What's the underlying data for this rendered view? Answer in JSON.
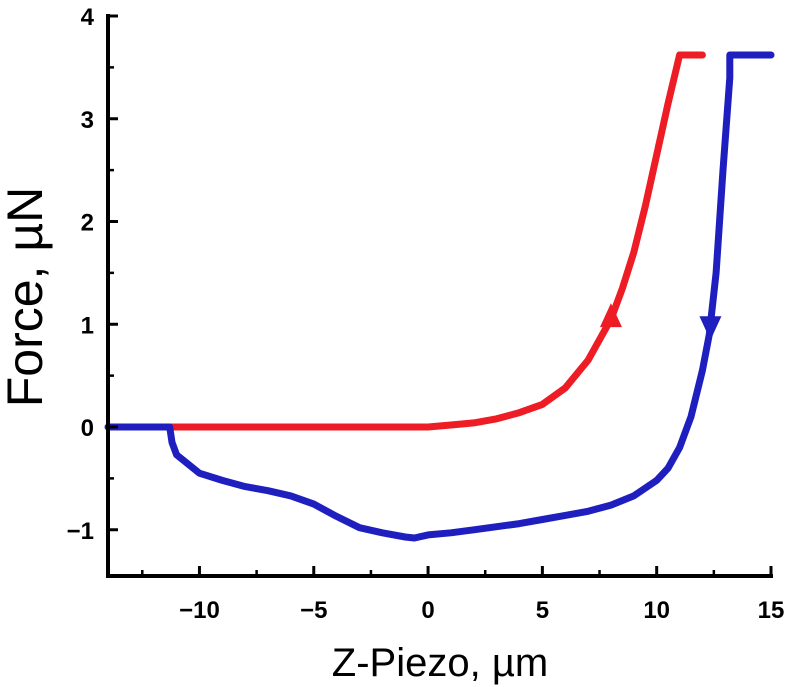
{
  "chart_data": {
    "type": "line",
    "title": "",
    "xlabel": "Z-Piezo, µm",
    "ylabel": "Force, µN",
    "xlim": [
      -14,
      15
    ],
    "ylim": [
      -1.45,
      4
    ],
    "x_ticks": [
      -10,
      -5,
      0,
      5,
      10,
      15
    ],
    "x_tick_labels": [
      "−10",
      "−5",
      "0",
      "5",
      "10",
      "15"
    ],
    "y_ticks": [
      -1,
      0,
      1,
      2,
      3,
      4
    ],
    "y_tick_labels": [
      "−1",
      "0",
      "1",
      "2",
      "3",
      "4"
    ],
    "grid": false,
    "series": [
      {
        "color": "#ee1c24",
        "direction": "up",
        "arrow_at_x": 8.0,
        "x": [
          -11.3,
          -6,
          -2,
          0,
          1,
          2,
          3,
          4,
          5,
          6,
          7,
          8,
          8.5,
          9,
          9.5,
          10,
          10.5,
          11.0,
          11.5,
          12.0
        ],
        "y": [
          0.0,
          0.0,
          0.0,
          0.0,
          0.02,
          0.04,
          0.08,
          0.14,
          0.22,
          0.38,
          0.65,
          1.05,
          1.35,
          1.7,
          2.15,
          2.65,
          3.15,
          3.62,
          3.62,
          3.62
        ]
      },
      {
        "color": "#1f1fbf",
        "direction": "down",
        "arrow_at_x": 12.35,
        "x": [
          -14,
          -11.3,
          -11.2,
          -11.0,
          -10,
          -9,
          -8,
          -7,
          -6,
          -5,
          -4,
          -3,
          -2,
          -1,
          -0.6,
          0,
          1,
          2,
          3,
          4,
          5,
          6,
          7,
          8,
          9,
          10,
          10.5,
          11,
          11.5,
          12,
          12.3,
          12.6,
          12.9,
          13.2,
          13.2,
          15
        ],
        "y": [
          0.0,
          0.0,
          -0.15,
          -0.27,
          -0.45,
          -0.52,
          -0.58,
          -0.62,
          -0.67,
          -0.75,
          -0.87,
          -0.98,
          -1.03,
          -1.07,
          -1.08,
          -1.05,
          -1.03,
          -1.0,
          -0.97,
          -0.94,
          -0.9,
          -0.86,
          -0.82,
          -0.76,
          -0.67,
          -0.52,
          -0.4,
          -0.2,
          0.1,
          0.55,
          0.9,
          1.5,
          2.5,
          3.4,
          3.62,
          3.62
        ]
      }
    ]
  }
}
